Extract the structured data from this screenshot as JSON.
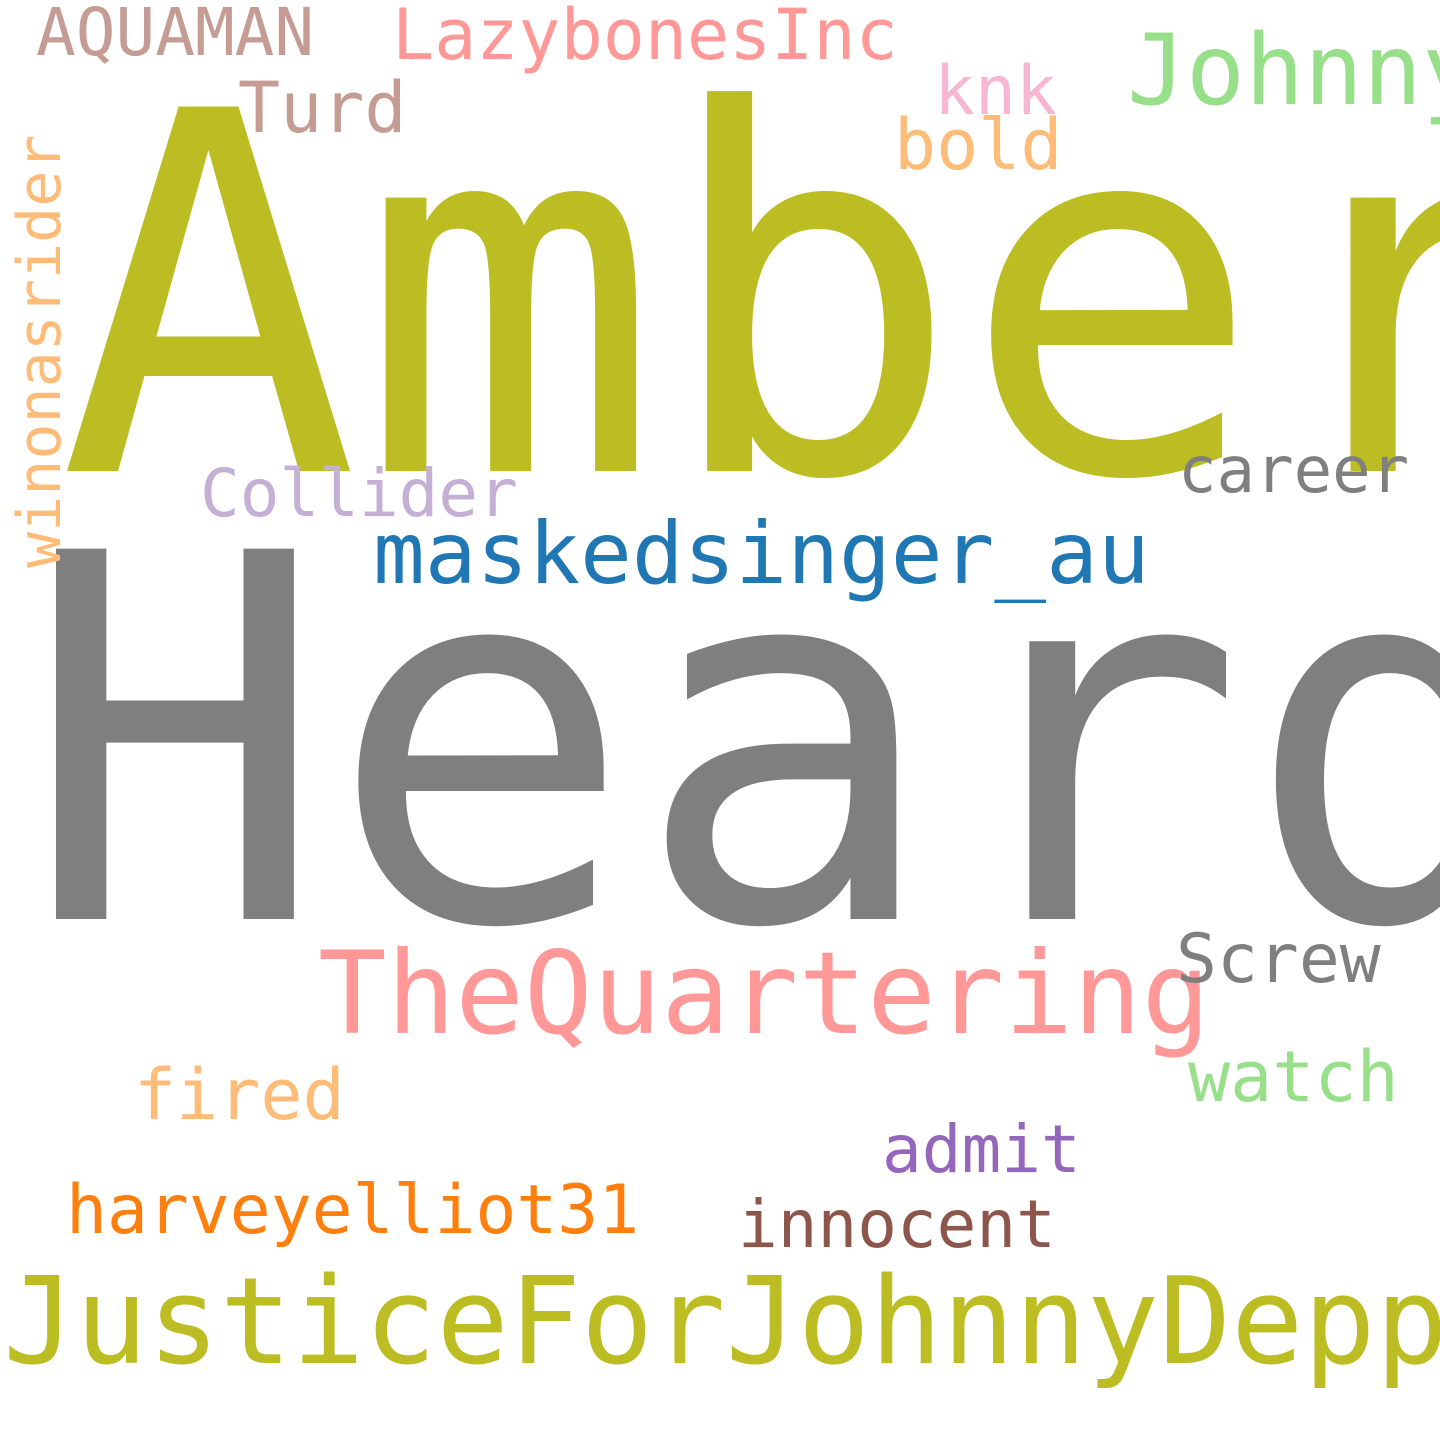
{
  "word_cloud": {
    "background": "#ffffff",
    "words": [
      {
        "text": "Amber",
        "color": "#bcbd22"
      },
      {
        "text": "Heard",
        "color": "#7f7f7f"
      },
      {
        "text": "JusticeForJohnnyDepp",
        "color": "#bcbd22"
      },
      {
        "text": "TheQuartering",
        "color": "#ff9896"
      },
      {
        "text": "maskedsinger_au",
        "color": "#1f77b4"
      },
      {
        "text": "Johnny",
        "color": "#98df8a"
      },
      {
        "text": "LazybonesInc",
        "color": "#ff9896"
      },
      {
        "text": "AQUAMAN",
        "color": "#c49c94"
      },
      {
        "text": "Turd",
        "color": "#c49c94"
      },
      {
        "text": "knk",
        "color": "#f7b6d2"
      },
      {
        "text": "bold",
        "color": "#ffbb78"
      },
      {
        "text": "winonasrider",
        "color": "#ffbb78"
      },
      {
        "text": "Collider",
        "color": "#c5b0d5"
      },
      {
        "text": "career",
        "color": "#7f7f7f"
      },
      {
        "text": "Screw",
        "color": "#7f7f7f"
      },
      {
        "text": "watch",
        "color": "#98df8a"
      },
      {
        "text": "fired",
        "color": "#ffbb78"
      },
      {
        "text": "admit",
        "color": "#9467bd"
      },
      {
        "text": "harveyelliot31",
        "color": "#ff7f0e"
      },
      {
        "text": "innocent",
        "color": "#8c564b"
      }
    ]
  }
}
